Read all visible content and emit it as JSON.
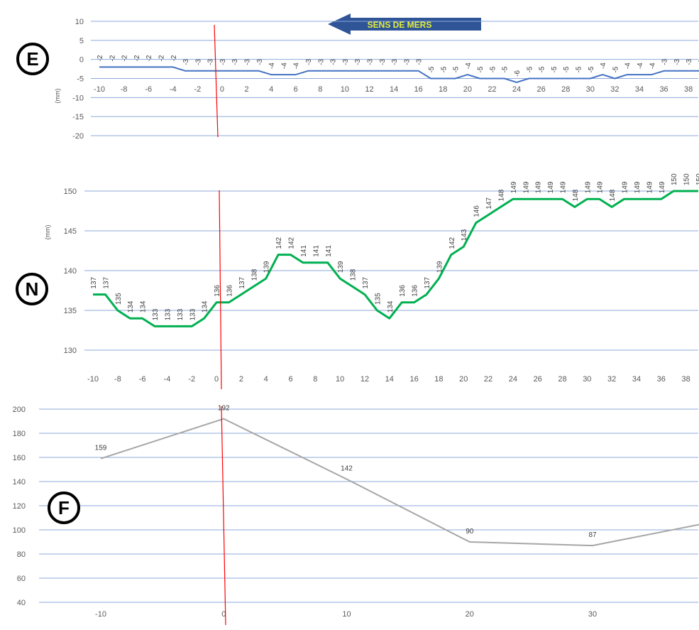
{
  "banner": {
    "label": "SENS DE MERS"
  },
  "colors": {
    "E": "#4472c4",
    "N": "#00b050",
    "F": "#a6a6a6",
    "grid": "#8ea9db",
    "marker": "#ff0000",
    "banner": "#2f5597"
  },
  "chart_data": [
    {
      "id": "E",
      "type": "line",
      "panel_label": "E",
      "ylabel": "(mm)",
      "ylim": [
        -20,
        10
      ],
      "yticks": [
        10,
        5,
        0,
        -5,
        -10,
        -15,
        -20
      ],
      "xlim": [
        -10,
        39
      ],
      "xticks": [
        -10,
        -8,
        -6,
        -4,
        -2,
        0,
        2,
        4,
        6,
        8,
        10,
        12,
        14,
        16,
        18,
        20,
        22,
        24,
        26,
        28,
        30,
        32,
        34,
        36,
        38
      ],
      "series": [
        {
          "x": [
            -10,
            -9,
            -8,
            -7,
            -6,
            -5,
            -4,
            -3,
            -2,
            -1,
            0,
            1,
            2,
            3,
            4,
            5,
            6,
            7,
            8,
            9,
            10,
            11,
            12,
            13,
            14,
            15,
            16,
            17,
            18,
            19,
            20,
            21,
            22,
            23,
            24,
            25,
            26,
            27,
            28,
            29,
            30,
            31,
            32,
            33,
            34,
            35,
            36,
            37,
            38,
            39
          ],
          "values": [
            -2,
            -2,
            -2,
            -2,
            -2,
            -2,
            -2,
            -3,
            -3,
            -3,
            -3,
            -3,
            -3,
            -3,
            -4,
            -4,
            -4,
            -3,
            -3,
            -3,
            -3,
            -3,
            -3,
            -3,
            -3,
            -3,
            -3,
            -5,
            -5,
            -5,
            -4,
            -5,
            -5,
            -5,
            -6,
            -5,
            -5,
            -5,
            -5,
            -5,
            -5,
            -4,
            -5,
            -4,
            -4,
            -4,
            -3,
            -3,
            -3,
            -3
          ]
        }
      ]
    },
    {
      "id": "N",
      "type": "line",
      "panel_label": "N",
      "ylabel": "(mm)",
      "ylim": [
        130,
        150
      ],
      "yticks": [
        150,
        145,
        140,
        135,
        130
      ],
      "xlim": [
        -10,
        39
      ],
      "xticks": [
        -10,
        -8,
        -6,
        -4,
        -2,
        0,
        2,
        4,
        6,
        8,
        10,
        12,
        14,
        16,
        18,
        20,
        22,
        24,
        26,
        28,
        30,
        32,
        34,
        36,
        38
      ],
      "series": [
        {
          "x": [
            -10,
            -9,
            -8,
            -7,
            -6,
            -5,
            -4,
            -3,
            -2,
            -1,
            0,
            1,
            2,
            3,
            4,
            5,
            6,
            7,
            8,
            9,
            10,
            11,
            12,
            13,
            14,
            15,
            16,
            17,
            18,
            19,
            20,
            21,
            22,
            23,
            24,
            25,
            26,
            27,
            28,
            29,
            30,
            31,
            32,
            33,
            34,
            35,
            36,
            37,
            38,
            39
          ],
          "values": [
            137,
            137,
            135,
            134,
            134,
            133,
            133,
            133,
            133,
            134,
            136,
            136,
            137,
            138,
            139,
            142,
            142,
            141,
            141,
            141,
            139,
            138,
            137,
            135,
            134,
            136,
            136,
            137,
            139,
            142,
            143,
            146,
            147,
            148,
            149,
            149,
            149,
            149,
            149,
            148,
            149,
            149,
            148,
            149,
            149,
            149,
            149,
            150,
            150,
            150
          ]
        }
      ]
    },
    {
      "id": "F",
      "type": "line",
      "panel_label": "F",
      "ylabel": "",
      "ylim": [
        40,
        200
      ],
      "yticks": [
        200,
        180,
        160,
        140,
        120,
        100,
        80,
        60,
        40
      ],
      "xlim": [
        -10,
        39
      ],
      "xticks": [
        -10,
        0,
        10,
        20,
        30
      ],
      "xtick_labels": [
        "-10",
        "0",
        "10",
        "20",
        "30"
      ],
      "series": [
        {
          "x": [
            -10,
            0,
            10,
            20,
            30,
            39
          ],
          "values": [
            159,
            192,
            142,
            90,
            87,
            105
          ],
          "labels": [
            "159",
            "192",
            "142",
            "90",
            "87",
            ""
          ]
        }
      ]
    }
  ],
  "marker_line": {
    "x": 0
  }
}
